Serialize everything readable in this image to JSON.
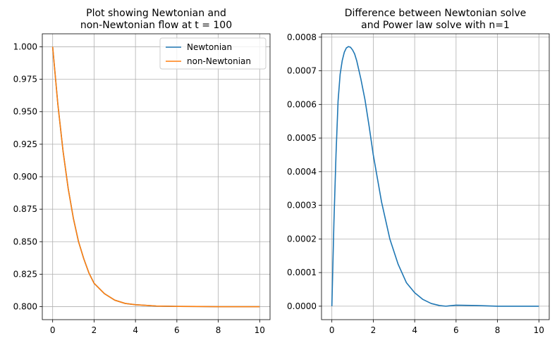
{
  "chart_data": [
    {
      "type": "line",
      "title_lines": [
        "Plot showing Newtonian and",
        "non-Newtonian flow at t = 100"
      ],
      "xlabel": "",
      "ylabel": "",
      "xlim": [
        -0.5,
        10.5
      ],
      "ylim": [
        0.79,
        1.01
      ],
      "xticks": [
        0,
        2,
        4,
        6,
        8,
        10
      ],
      "xtick_labels": [
        "0",
        "2",
        "4",
        "6",
        "8",
        "10"
      ],
      "yticks": [
        0.8,
        0.825,
        0.85,
        0.875,
        0.9,
        0.925,
        0.95,
        0.975,
        1.0
      ],
      "ytick_labels": [
        "0.800",
        "0.825",
        "0.850",
        "0.875",
        "0.900",
        "0.925",
        "0.950",
        "0.975",
        "1.000"
      ],
      "grid": true,
      "legend_position": "top-right",
      "series": [
        {
          "name": "Newtonian",
          "color": "#1f77b4",
          "x": [
            0,
            0.25,
            0.5,
            0.75,
            1,
            1.25,
            1.5,
            1.75,
            2,
            2.5,
            3,
            3.5,
            4,
            4.5,
            5,
            6,
            7,
            8,
            9,
            10
          ],
          "y": [
            1.0,
            0.956,
            0.92,
            0.891,
            0.868,
            0.85,
            0.837,
            0.826,
            0.818,
            0.81,
            0.805,
            0.8025,
            0.8015,
            0.801,
            0.8005,
            0.8002,
            0.8001,
            0.8,
            0.8,
            0.8
          ]
        },
        {
          "name": "non-Newtonian",
          "color": "#ff7f0e",
          "x": [
            0,
            0.25,
            0.5,
            0.75,
            1,
            1.25,
            1.5,
            1.75,
            2,
            2.5,
            3,
            3.5,
            4,
            4.5,
            5,
            6,
            7,
            8,
            9,
            10
          ],
          "y": [
            1.0,
            0.956,
            0.92,
            0.891,
            0.868,
            0.85,
            0.837,
            0.826,
            0.818,
            0.81,
            0.805,
            0.8025,
            0.8015,
            0.801,
            0.8005,
            0.8002,
            0.8001,
            0.8,
            0.8,
            0.8
          ]
        }
      ]
    },
    {
      "type": "line",
      "title_lines": [
        "Difference between Newtonian solve",
        "and Power law solve with n=1"
      ],
      "xlabel": "",
      "ylabel": "",
      "xlim": [
        -0.5,
        10.5
      ],
      "ylim": [
        -4e-05,
        0.00081
      ],
      "xticks": [
        0,
        2,
        4,
        6,
        8,
        10
      ],
      "xtick_labels": [
        "0",
        "2",
        "4",
        "6",
        "8",
        "10"
      ],
      "yticks": [
        0,
        0.0001,
        0.0002,
        0.0003,
        0.0004,
        0.0005,
        0.0006,
        0.0007,
        0.0008
      ],
      "ytick_labels": [
        "0.0000",
        "0.0001",
        "0.0002",
        "0.0003",
        "0.0004",
        "0.0005",
        "0.0006",
        "0.0007",
        "0.0008"
      ],
      "grid": true,
      "series": [
        {
          "color": "#1f77b4",
          "x": [
            0,
            0.1,
            0.2,
            0.3,
            0.4,
            0.5,
            0.6,
            0.7,
            0.8,
            0.9,
            1.0,
            1.1,
            1.2,
            1.4,
            1.6,
            1.8,
            2.0,
            2.4,
            2.8,
            3.2,
            3.6,
            4.0,
            4.4,
            4.8,
            5.2,
            5.5,
            6.0,
            7.0,
            8.0,
            9.0,
            10.0
          ],
          "y": [
            0,
            0.00025,
            0.00045,
            0.00061,
            0.00069,
            0.00073,
            0.000755,
            0.000768,
            0.000772,
            0.00077,
            0.000762,
            0.00075,
            0.00073,
            0.000676,
            0.000614,
            0.000535,
            0.00045,
            0.00031,
            0.0002,
            0.000125,
            7e-05,
            4e-05,
            2e-05,
            8e-06,
            2e-06,
            0.0,
            3e-06,
            2e-06,
            0.0,
            0.0,
            0.0
          ]
        }
      ]
    }
  ]
}
